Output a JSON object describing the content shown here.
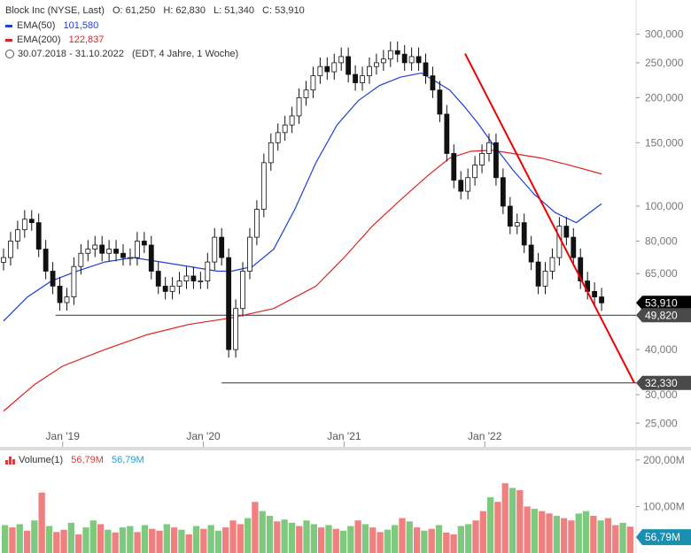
{
  "header": {
    "symbol_line": "Block Inc (NYSE, Last)",
    "ohlc": {
      "open": "O: 61,250",
      "high": "H: 62,830",
      "low": "L: 51,340",
      "close": "C: 53,910"
    },
    "ema50_label": "EMA(50)",
    "ema50_value": "101,580",
    "ema200_label": "EMA(200)",
    "ema200_value": "122,837",
    "range_text": "30.07.2018 - 31.10.2022",
    "range_info": "(EDT, 4 Jahre, 1 Woche)"
  },
  "colors": {
    "ema50": "#1f3fd8",
    "ema200": "#e02020",
    "trendline": "#ee0000",
    "up_volume": "#7fc97f",
    "down_volume": "#f08080",
    "last_price_badge": "#000000",
    "support_badge": "#4a4a4a",
    "volume_badge": "#1a8fb0"
  },
  "chart_data": [
    {
      "type": "line",
      "title": "Block Inc (NYSE, Last)",
      "scale": "log",
      "ylim": [
        22000,
        340000
      ],
      "y_tick_labels": [
        "300,000",
        "250,000",
        "200,000",
        "150,000",
        "100,000",
        "80,000",
        "65,000",
        "40,000",
        "30,000",
        "25,000"
      ],
      "y_ticks": [
        300000,
        250000,
        200000,
        150000,
        100000,
        80000,
        65000,
        40000,
        30000,
        25000
      ],
      "x_tick_labels": [
        "Jan '19",
        "Jan '20",
        "Jan '21",
        "Jan '22"
      ],
      "x_ticks": [
        2019.0,
        2020.0,
        2021.0,
        2022.0
      ],
      "xlim": [
        2018.58,
        2023.05
      ],
      "series": [
        {
          "name": "Block Inc",
          "style": "candlestick",
          "x": [
            2018.58,
            2018.63,
            2018.68,
            2018.73,
            2018.78,
            2018.83,
            2018.88,
            2018.93,
            2018.98,
            2019.03,
            2019.08,
            2019.13,
            2019.18,
            2019.23,
            2019.28,
            2019.33,
            2019.38,
            2019.43,
            2019.48,
            2019.53,
            2019.58,
            2019.63,
            2019.68,
            2019.73,
            2019.78,
            2019.83,
            2019.88,
            2019.93,
            2019.98,
            2020.03,
            2020.08,
            2020.13,
            2020.18,
            2020.23,
            2020.28,
            2020.33,
            2020.38,
            2020.43,
            2020.48,
            2020.53,
            2020.58,
            2020.63,
            2020.68,
            2020.73,
            2020.78,
            2020.83,
            2020.88,
            2020.93,
            2020.98,
            2021.03,
            2021.08,
            2021.13,
            2021.18,
            2021.23,
            2021.28,
            2021.33,
            2021.38,
            2021.43,
            2021.48,
            2021.53,
            2021.58,
            2021.63,
            2021.68,
            2021.73,
            2021.78,
            2021.83,
            2021.88,
            2021.93,
            2021.98,
            2022.03,
            2022.08,
            2022.13,
            2022.18,
            2022.23,
            2022.28,
            2022.33,
            2022.38,
            2022.43,
            2022.48,
            2022.53,
            2022.58,
            2022.63,
            2022.68,
            2022.73,
            2022.78,
            2022.83
          ],
          "y": [
            72000,
            80000,
            86000,
            92000,
            90000,
            76000,
            66000,
            60000,
            54000,
            56000,
            68000,
            74000,
            76000,
            78000,
            74000,
            76000,
            74000,
            72000,
            72000,
            80000,
            78000,
            66000,
            60000,
            58000,
            60000,
            62000,
            64000,
            62000,
            62000,
            70000,
            82000,
            72000,
            40000,
            52000,
            66000,
            82000,
            98000,
            132000,
            150000,
            160000,
            168000,
            178000,
            200000,
            210000,
            230000,
            244000,
            236000,
            250000,
            260000,
            232000,
            220000,
            230000,
            244000,
            250000,
            256000,
            270000,
            264000,
            250000,
            260000,
            250000,
            230000,
            210000,
            180000,
            140000,
            118000,
            110000,
            120000,
            130000,
            140000,
            150000,
            120000,
            100000,
            88000,
            90000,
            78000,
            70000,
            60000,
            66000,
            72000,
            88000,
            82000,
            72000,
            62000,
            58000,
            56000,
            53910
          ]
        },
        {
          "name": "EMA(50)",
          "x": [
            2018.58,
            2018.75,
            2018.92,
            2019.1,
            2019.3,
            2019.5,
            2019.7,
            2019.9,
            2020.1,
            2020.2,
            2020.35,
            2020.5,
            2020.65,
            2020.8,
            2020.95,
            2021.1,
            2021.25,
            2021.4,
            2021.55,
            2021.65,
            2021.75,
            2021.85,
            2021.95,
            2022.05,
            2022.2,
            2022.35,
            2022.5,
            2022.65,
            2022.83
          ],
          "y": [
            48000,
            56000,
            62000,
            66000,
            70000,
            72000,
            70000,
            68000,
            66000,
            66000,
            68000,
            76000,
            98000,
            132000,
            168000,
            196000,
            216000,
            228000,
            234000,
            222000,
            210000,
            190000,
            170000,
            150000,
            126000,
            108000,
            96000,
            90000,
            101580
          ]
        },
        {
          "name": "EMA(200)",
          "x": [
            2018.58,
            2018.8,
            2019.0,
            2019.3,
            2019.6,
            2019.9,
            2020.2,
            2020.5,
            2020.8,
            2021.0,
            2021.2,
            2021.4,
            2021.6,
            2021.75,
            2021.9,
            2022.05,
            2022.2,
            2022.4,
            2022.6,
            2022.83
          ],
          "y": [
            27000,
            32000,
            36000,
            40000,
            44000,
            47000,
            49000,
            52000,
            60000,
            72000,
            88000,
            104000,
            122000,
            136000,
            142000,
            143000,
            140000,
            136000,
            130000,
            122837
          ]
        }
      ],
      "annotations": {
        "last_price": "53,910",
        "support_high": "49,820",
        "support_low": "32,330",
        "trendline": {
          "from": [
            2021.86,
            265000
          ],
          "to": [
            2023.05,
            32330
          ]
        }
      }
    },
    {
      "type": "bar",
      "title": "Volume(1)",
      "legend": [
        {
          "name": "Volume(1)",
          "value": "56,79M",
          "color": "#d04040"
        },
        {
          "name": "",
          "value": "56,79M",
          "color": "#2a9fd0"
        }
      ],
      "y_tick_labels": [
        "200,00M",
        "100,00M"
      ],
      "y_ticks": [
        200,
        100
      ],
      "ylim": [
        0,
        215
      ],
      "last_value": "56,79M",
      "values_m": [
        60,
        55,
        62,
        48,
        70,
        130,
        58,
        45,
        50,
        65,
        40,
        55,
        70,
        62,
        50,
        44,
        55,
        58,
        45,
        60,
        52,
        48,
        62,
        55,
        50,
        40,
        58,
        52,
        60,
        48,
        55,
        70,
        62,
        75,
        110,
        90,
        80,
        68,
        72,
        65,
        58,
        70,
        62,
        55,
        60,
        52,
        48,
        58,
        70,
        62,
        55,
        45,
        50,
        60,
        75,
        68,
        55,
        48,
        52,
        60,
        44,
        40,
        58,
        62,
        70,
        90,
        120,
        110,
        150,
        140,
        135,
        100,
        95,
        90,
        85,
        80,
        75,
        70,
        85,
        90,
        80,
        70,
        75,
        60,
        65,
        56.79
      ],
      "up": [
        1,
        0,
        1,
        0,
        1,
        0,
        1,
        0,
        0,
        1,
        0,
        1,
        1,
        0,
        1,
        0,
        1,
        1,
        0,
        1,
        0,
        0,
        1,
        0,
        1,
        0,
        1,
        0,
        1,
        1,
        0,
        0,
        0,
        1,
        0,
        1,
        1,
        0,
        1,
        1,
        0,
        1,
        1,
        0,
        1,
        0,
        1,
        1,
        0,
        1,
        0,
        0,
        1,
        1,
        0,
        1,
        0,
        1,
        0,
        1,
        0,
        0,
        1,
        1,
        0,
        0,
        1,
        0,
        0,
        1,
        0,
        0,
        1,
        0,
        0,
        1,
        0,
        0,
        1,
        1,
        0,
        1,
        0,
        0,
        1,
        0
      ]
    }
  ]
}
